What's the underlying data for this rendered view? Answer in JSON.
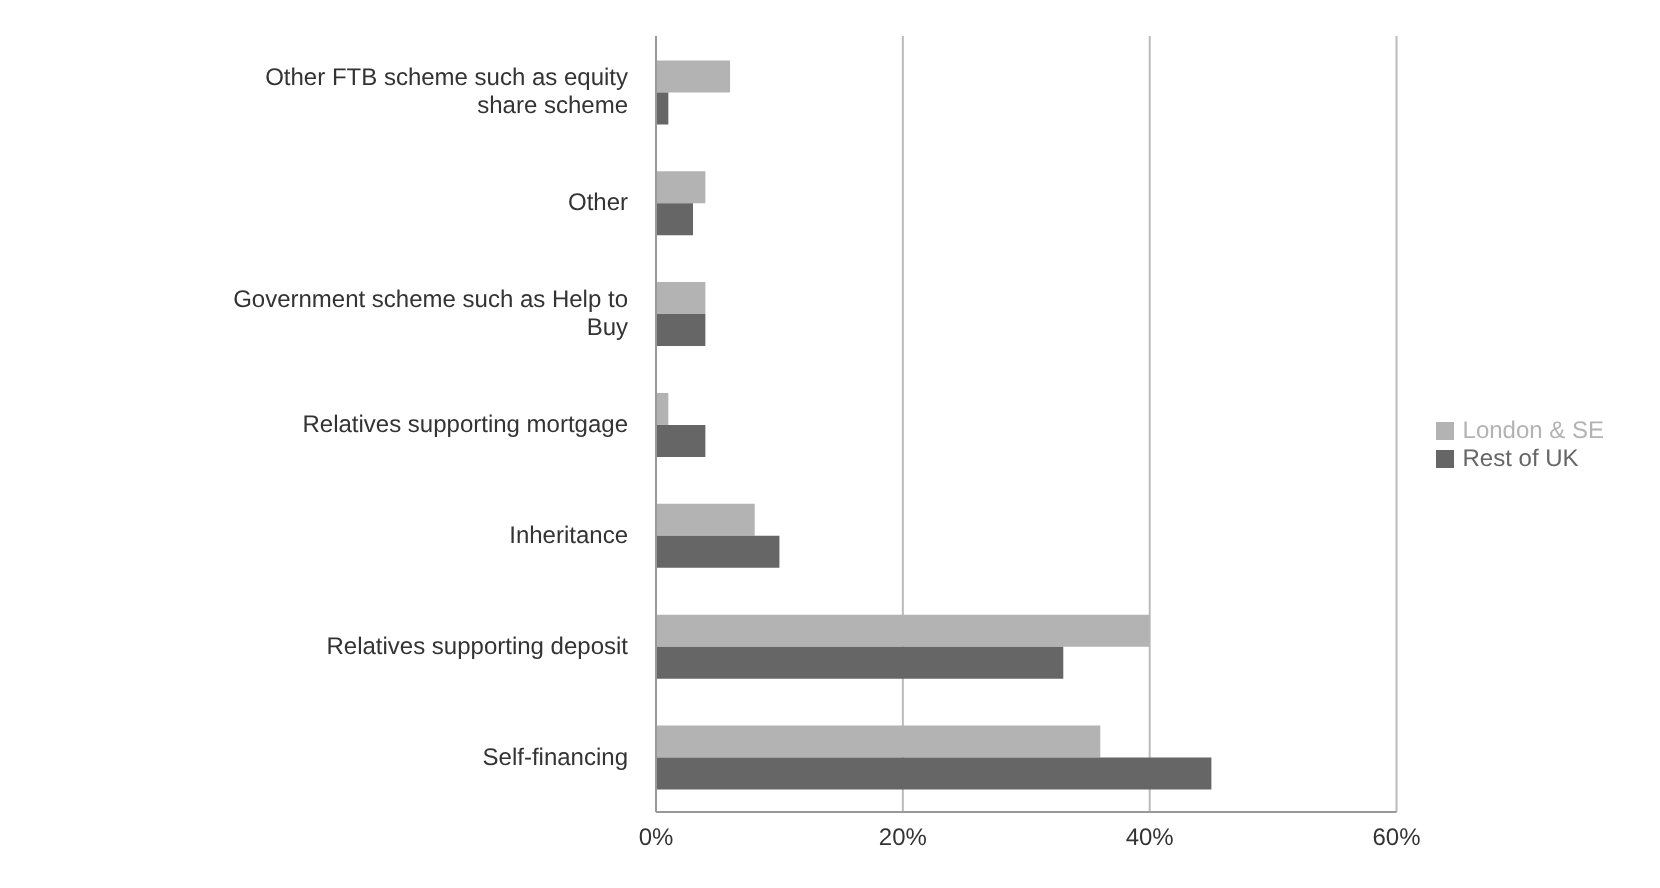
{
  "chart_data": {
    "type": "bar",
    "orientation": "horizontal",
    "categories": [
      "Other FTB scheme such as equity share scheme",
      "Other",
      "Government scheme such as Help to Buy",
      "Relatives supporting mortgage",
      "Inheritance",
      "Relatives supporting deposit",
      "Self-financing"
    ],
    "series": [
      {
        "name": "London & SE",
        "color": "#b3b3b3",
        "values": [
          6,
          4,
          4,
          1,
          8,
          40,
          36
        ]
      },
      {
        "name": "Rest of UK",
        "color": "#666666",
        "values": [
          1,
          3,
          4,
          4,
          10,
          33,
          45
        ]
      }
    ],
    "xlim": [
      0,
      60
    ],
    "xticks": [
      {
        "value": 0,
        "label": "0%"
      },
      {
        "value": 20,
        "label": "20%"
      },
      {
        "value": 40,
        "label": "40%"
      },
      {
        "value": 60,
        "label": "60%"
      }
    ],
    "grid": "x",
    "legend": "right"
  }
}
